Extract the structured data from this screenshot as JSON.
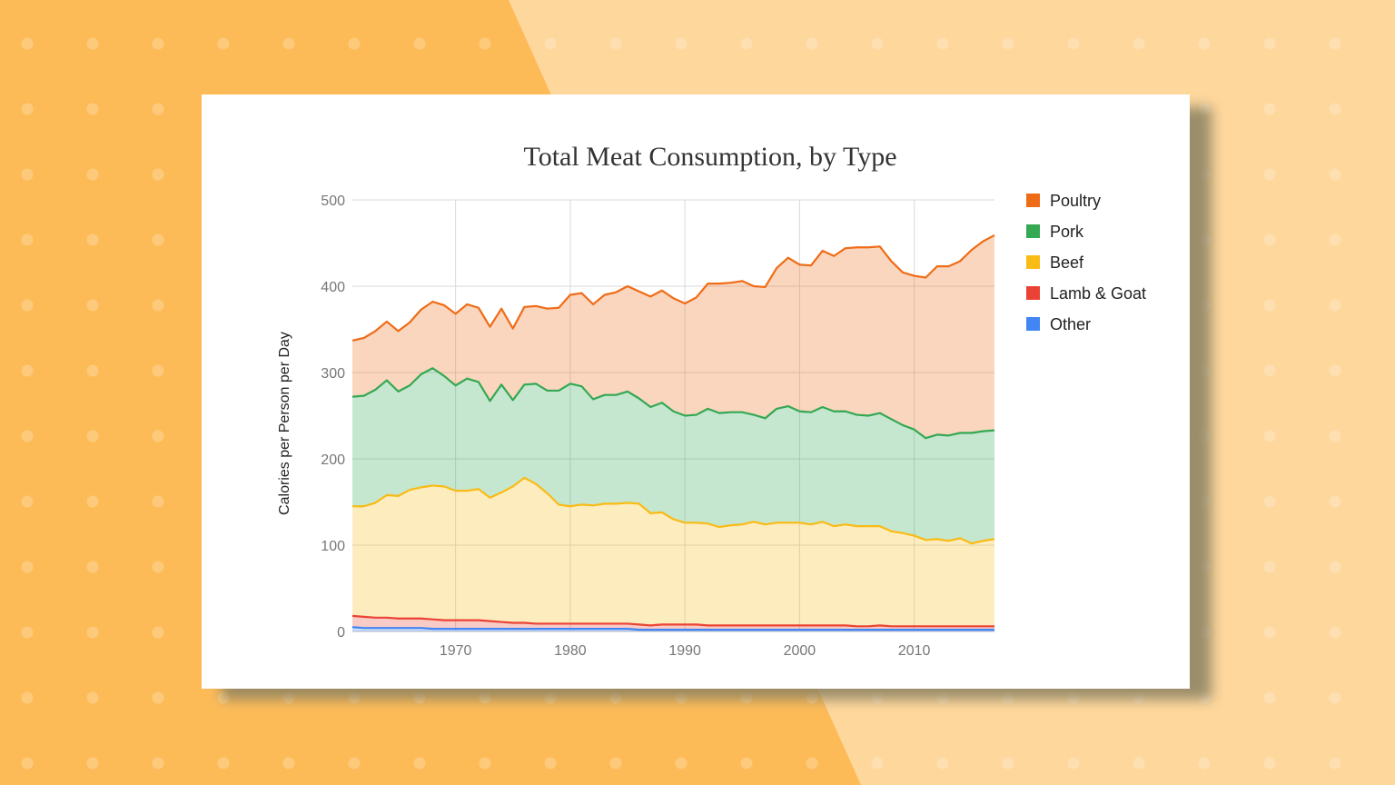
{
  "colors": {
    "background_left": "#fdbb58",
    "background_right": "#fed79c",
    "card": "#ffffff"
  },
  "chart_data": {
    "type": "area",
    "stacked": true,
    "title": "Total Meat Consumption, by Type",
    "xlabel": "",
    "ylabel": "Calories per Person per Day",
    "xlim": [
      1961,
      2017
    ],
    "ylim": [
      0,
      500
    ],
    "yticks": [
      0,
      100,
      200,
      300,
      400,
      500
    ],
    "xticks": [
      1970,
      1980,
      1990,
      2000,
      2010
    ],
    "grid": true,
    "legend_position": "right",
    "x": [
      1961,
      1962,
      1963,
      1964,
      1965,
      1966,
      1967,
      1968,
      1969,
      1970,
      1971,
      1972,
      1973,
      1974,
      1975,
      1976,
      1977,
      1978,
      1979,
      1980,
      1981,
      1982,
      1983,
      1984,
      1985,
      1986,
      1987,
      1988,
      1989,
      1990,
      1991,
      1992,
      1993,
      1994,
      1995,
      1996,
      1997,
      1998,
      1999,
      2000,
      2001,
      2002,
      2003,
      2004,
      2005,
      2006,
      2007,
      2008,
      2009,
      2010,
      2011,
      2012,
      2013,
      2014,
      2015,
      2016,
      2017
    ],
    "series_order_note": "bottom to top",
    "series": [
      {
        "name": "Other",
        "color": "#4285f4",
        "values": [
          5,
          4,
          4,
          4,
          4,
          4,
          4,
          3,
          3,
          3,
          3,
          3,
          3,
          3,
          3,
          3,
          3,
          3,
          3,
          3,
          3,
          3,
          3,
          3,
          3,
          2,
          2,
          2,
          2,
          2,
          2,
          2,
          2,
          2,
          2,
          2,
          2,
          2,
          2,
          2,
          2,
          2,
          2,
          2,
          2,
          2,
          2,
          2,
          2,
          2,
          2,
          2,
          2,
          2,
          2,
          2,
          2
        ]
      },
      {
        "name": "Lamb & Goat",
        "color": "#ea4335",
        "values": [
          13,
          13,
          12,
          12,
          11,
          11,
          11,
          11,
          10,
          10,
          10,
          10,
          9,
          8,
          7,
          7,
          6,
          6,
          6,
          6,
          6,
          6,
          6,
          6,
          6,
          6,
          5,
          6,
          6,
          6,
          6,
          5,
          5,
          5,
          5,
          5,
          5,
          5,
          5,
          5,
          5,
          5,
          5,
          5,
          4,
          4,
          5,
          4,
          4,
          4,
          4,
          4,
          4,
          4,
          4,
          4,
          4
        ]
      },
      {
        "name": "Beef",
        "color": "#f9bb15",
        "values": [
          127,
          128,
          133,
          142,
          142,
          149,
          152,
          155,
          155,
          150,
          150,
          152,
          143,
          150,
          158,
          168,
          162,
          151,
          138,
          136,
          138,
          137,
          139,
          139,
          140,
          140,
          130,
          130,
          122,
          118,
          118,
          118,
          114,
          116,
          117,
          120,
          117,
          119,
          119,
          119,
          117,
          120,
          115,
          117,
          116,
          116,
          115,
          110,
          108,
          105,
          100,
          101,
          99,
          102,
          96,
          99,
          101
        ]
      },
      {
        "name": "Pork",
        "color": "#34a853",
        "values": [
          127,
          128,
          131,
          133,
          121,
          121,
          131,
          136,
          128,
          122,
          130,
          124,
          112,
          125,
          100,
          108,
          116,
          119,
          132,
          142,
          137,
          123,
          126,
          126,
          129,
          122,
          123,
          127,
          125,
          124,
          125,
          133,
          132,
          131,
          130,
          124,
          123,
          132,
          135,
          129,
          130,
          133,
          133,
          131,
          129,
          128,
          131,
          130,
          125,
          123,
          118,
          121,
          122,
          122,
          128,
          127,
          126
        ]
      },
      {
        "name": "Poultry",
        "color": "#ef6c17",
        "values": [
          65,
          67,
          68,
          68,
          70,
          73,
          75,
          77,
          82,
          83,
          86,
          86,
          86,
          88,
          83,
          90,
          90,
          95,
          96,
          103,
          108,
          110,
          116,
          119,
          122,
          124,
          128,
          130,
          131,
          130,
          136,
          145,
          150,
          150,
          152,
          149,
          152,
          163,
          172,
          170,
          170,
          181,
          180,
          189,
          194,
          195,
          193,
          183,
          177,
          178,
          186,
          195,
          196,
          199,
          212,
          220,
          226
        ]
      }
    ]
  }
}
